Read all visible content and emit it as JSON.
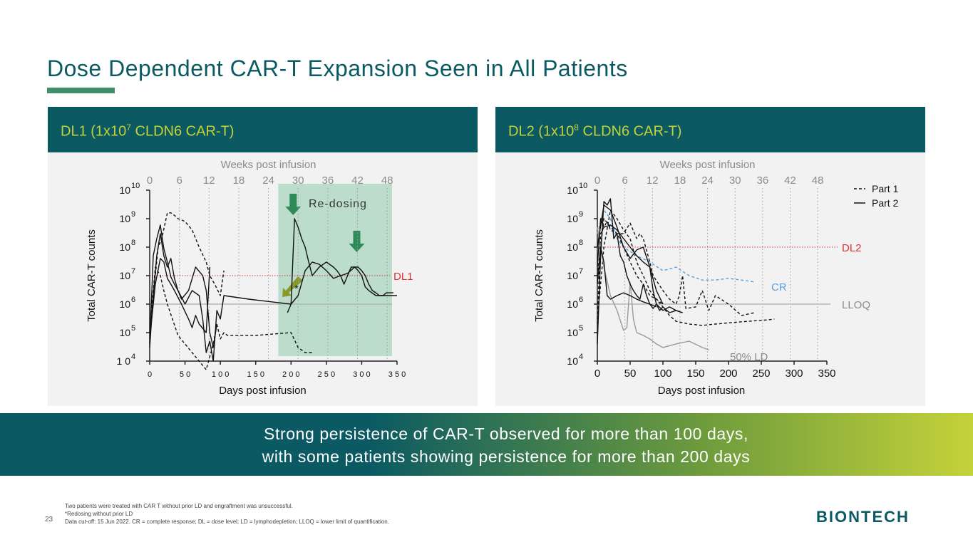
{
  "slide": {
    "title": "Dose Dependent CAR-T Expansion Seen in All Patients",
    "page_number": "23",
    "banner_line1": "Strong persistence of CAR-T observed for more than 100 days,",
    "banner_line2": "with  some patients showing persistence for more than 200 days",
    "footnotes": [
      "Two patients were treated with CAR T without prior LD and engraftment was unsuccessful.",
      "*Redosing without prior LD",
      "Data cut-off: 15 Jun 2022. CR = complete response; DL = dose level; LD = lymphodepletion; LLOQ = lower limit of quantification."
    ],
    "logo_text": "BIONTECH",
    "colors": {
      "teal": "#0b5a63",
      "accent": "#c4d23a",
      "green_bar": "#3f8f6b",
      "redosing_shade": "#bcdccc",
      "arrow_green": "#2e8b57",
      "dl_line": "#e03030",
      "cr_line": "#5aa0e6",
      "ld_line": "#9a9a9a"
    }
  },
  "chart_data": [
    {
      "type": "line",
      "panel_title_prefix": "DL1 (1x10",
      "panel_title_exp": "7",
      "panel_title_suffix": " CLDN6 CAR-T)",
      "xlabel": "Days post infusion",
      "ylabel": "Total CAR-T counts",
      "top_axis_label": "Weeks post infusion",
      "xlim": [
        0,
        350
      ],
      "ylim_log10": [
        4,
        10
      ],
      "x_ticks": [
        0,
        50,
        100,
        150,
        200,
        250,
        300,
        350
      ],
      "x_tick_labels": [
        "0",
        "5 0",
        "1 0 0",
        "1 5 0",
        "2 0 0",
        "2 5 0",
        "3 0 0",
        "3 5 0"
      ],
      "week_ticks": [
        0,
        6,
        12,
        18,
        24,
        30,
        36,
        42,
        48
      ],
      "y_tick_exponents": [
        4,
        5,
        6,
        7,
        8,
        9,
        10
      ],
      "y_tick_base_first": "1 0",
      "y_tick_base": "10",
      "reference_line": {
        "label": "DL1",
        "value": 10000000
      },
      "lloq_value": 1000000,
      "redosing": {
        "label": "Re-dosing",
        "x_range": [
          190,
          350
        ],
        "arrow_days": [
          203,
          293
        ],
        "star_label": "*"
      },
      "series": [
        {
          "style": "dashed",
          "x": [
            0,
            5,
            12,
            17,
            25,
            30,
            35,
            40,
            45,
            50,
            60,
            70,
            80,
            85,
            92,
            100,
            105
          ],
          "y": [
            60000,
            2000000,
            100000000,
            200000000,
            1600000000,
            1600000000,
            1300000000,
            1000000000,
            900000000,
            800000000,
            400000000,
            100000000,
            30000000,
            10000000,
            5000000,
            2000000,
            15000000
          ]
        },
        {
          "style": "dashed",
          "x": [
            0,
            8,
            15,
            20,
            25,
            40,
            60,
            80,
            90,
            95,
            100,
            105,
            110,
            150,
            200,
            210,
            220,
            230
          ],
          "y": [
            100000,
            20000000,
            10000000,
            3000000,
            1000000,
            80000,
            20000,
            5000,
            40000,
            200000,
            60000,
            100000,
            80000,
            80000,
            100000,
            30000,
            20000,
            20000
          ]
        },
        {
          "style": "solid",
          "x": [
            0,
            5,
            10,
            15,
            20,
            25,
            30,
            35,
            40,
            50,
            60,
            70,
            75,
            80,
            85,
            90,
            95,
            100,
            105,
            140,
            200,
            210,
            220,
            230,
            240,
            250,
            260,
            270,
            280,
            290,
            295,
            300,
            305,
            310,
            320,
            330,
            340,
            345,
            350
          ],
          "y": [
            40000,
            50000000,
            200000000,
            600000000,
            90000000,
            30000000,
            9000000,
            5000000,
            3000000,
            1000000,
            3000000,
            2000000,
            300000,
            20000,
            50000,
            10000,
            600000,
            300000,
            2000000,
            1500000,
            1000000,
            2000000,
            15000000,
            30000000,
            25000000,
            15000000,
            8000000,
            10000000,
            12000000,
            20000000,
            15000000,
            10000000,
            4000000,
            3000000,
            2000000,
            2000000,
            2000000,
            2000000,
            2000000
          ]
        },
        {
          "style": "solid",
          "x": [
            195,
            200,
            205,
            210,
            215,
            220,
            225,
            230,
            240,
            250,
            260,
            265,
            270,
            275,
            285,
            290,
            295,
            300,
            305,
            310,
            315,
            320,
            325,
            330,
            335,
            340,
            345
          ],
          "y": [
            500000,
            1000000,
            1000000000,
            500000000,
            200000000,
            100000000,
            30000000,
            10000000,
            20000000,
            30000000,
            20000000,
            15000000,
            10000000,
            5000000,
            20000000,
            20000000,
            20000000,
            15000000,
            10000000,
            5000000,
            3000000,
            2500000,
            2000000,
            2000000,
            2500000,
            2500000,
            2500000
          ]
        },
        {
          "style": "solid",
          "x": [
            0,
            5,
            10,
            15,
            20,
            25,
            30,
            35,
            40,
            45,
            55,
            65,
            75,
            80,
            85,
            90,
            95
          ],
          "y": [
            30000,
            2000000,
            50000000,
            300000000,
            50000000,
            20000000,
            40000000,
            8000000,
            3000000,
            1500000,
            3000000,
            20000000,
            10000000,
            3000000,
            100000,
            30000,
            200000
          ]
        },
        {
          "style": "solid",
          "x": [
            0,
            8,
            15,
            20,
            25,
            30,
            35,
            45,
            55,
            60,
            65,
            70,
            80,
            85
          ],
          "y": [
            60000,
            5000000,
            40000000,
            30000000,
            8000000,
            5000000,
            3000000,
            1000000,
            300000,
            150000,
            400000,
            200000,
            100000,
            20000000
          ]
        }
      ]
    },
    {
      "type": "line",
      "panel_title_prefix": "DL2 (1x10",
      "panel_title_exp": "8",
      "panel_title_suffix": " CLDN6 CAR-T)",
      "xlabel": "Days post infusion",
      "ylabel": "Total CAR-T counts",
      "top_axis_label": "Weeks post infusion",
      "xlim": [
        0,
        350
      ],
      "ylim_log10": [
        4,
        10
      ],
      "x_ticks": [
        0,
        50,
        100,
        150,
        200,
        250,
        300,
        350
      ],
      "x_tick_labels": [
        "0",
        "50",
        "100",
        "150",
        "200",
        "250",
        "300",
        "350"
      ],
      "week_ticks": [
        0,
        6,
        12,
        18,
        24,
        30,
        36,
        42,
        48
      ],
      "y_tick_exponents": [
        4,
        5,
        6,
        7,
        8,
        9,
        10
      ],
      "y_tick_base_first": "10",
      "y_tick_base": "10",
      "reference_line": {
        "label": "DL2",
        "value": 100000000
      },
      "lloq_label": "LLOQ",
      "lloq_value": 1000000,
      "cr_label": "CR",
      "ld_label": "50% LD",
      "legend": [
        {
          "label": "Part 1",
          "style": "dashed"
        },
        {
          "label": "Part 2",
          "style": "solid"
        }
      ],
      "legend_position": "top-right",
      "series": [
        {
          "style": "dashed",
          "x": [
            0,
            5,
            10,
            15,
            20,
            30,
            40,
            50,
            60,
            65,
            70,
            80,
            85,
            100,
            110,
            120,
            125,
            130,
            135,
            150,
            160,
            170,
            180,
            200,
            220,
            240
          ],
          "y": [
            200000,
            300000000,
            500000000,
            800000000,
            400000000,
            300000000,
            300000000,
            700000000,
            200000000,
            300000000,
            200000000,
            30000000,
            10000000,
            3000000,
            1500000,
            1000000,
            2000000,
            10000000,
            700000,
            800000,
            3000000,
            600000,
            2000000,
            1000000,
            400000,
            500000
          ]
        },
        {
          "style": "dashed",
          "x": [
            0,
            5,
            10,
            20,
            30,
            40,
            50,
            60,
            70,
            80,
            90,
            100,
            110,
            120,
            140,
            160,
            180,
            200,
            220,
            240,
            260,
            270
          ],
          "y": [
            300000,
            5000000,
            100000000,
            2000000000,
            1000000000,
            400000000,
            200000000,
            30000000,
            10000000,
            3000000,
            1500000,
            800000,
            400000,
            250000,
            200000,
            180000,
            200000,
            220000,
            240000,
            260000,
            280000,
            300000
          ]
        },
        {
          "style": "dashed",
          "x": [
            0,
            10,
            20,
            30,
            40,
            50,
            60,
            70,
            80,
            90,
            100
          ],
          "y": [
            10000000,
            1000000000,
            500000000,
            300000000,
            100000000,
            30000000,
            10000000,
            5000000,
            2000000,
            1500000,
            1000000
          ]
        },
        {
          "style": "cr",
          "x": [
            0,
            10,
            20,
            30,
            40,
            60,
            80,
            100,
            120,
            140,
            160,
            180,
            200,
            220,
            240
          ],
          "y": [
            300000000,
            2000000000,
            1000000000,
            200000000,
            100000000,
            50000000,
            30000000,
            15000000,
            20000000,
            10000000,
            7000000,
            7000000,
            8000000,
            7000000,
            6000000
          ]
        },
        {
          "style": "ld",
          "x": [
            0,
            5,
            10,
            20,
            30,
            40,
            45,
            50,
            55,
            60,
            70,
            80,
            90,
            100,
            120,
            140,
            160,
            170
          ],
          "y": [
            500000000,
            100000000,
            20000000,
            2000000,
            600000,
            120000,
            150000,
            6000000,
            300000,
            100000,
            80000,
            60000,
            40000,
            30000,
            40000,
            50000,
            30000,
            25000
          ]
        },
        {
          "style": "solid",
          "x": [
            0,
            5,
            10,
            15,
            20,
            25,
            30,
            35,
            40,
            45,
            50,
            55,
            60,
            65,
            70,
            75,
            80,
            85,
            90,
            95,
            100,
            110,
            120,
            130
          ],
          "y": [
            40000,
            50000000,
            4000000000,
            3000000000,
            5000000000,
            200000000,
            300000000,
            50000000,
            30000000,
            10000000,
            5000000,
            3000000,
            2000000,
            1500000,
            5000000,
            2000000,
            1000000,
            700000,
            1000000,
            600000,
            800000,
            500000,
            600000,
            500000
          ]
        },
        {
          "style": "solid",
          "x": [
            0,
            5,
            10,
            20,
            30,
            40,
            50,
            60,
            70,
            80,
            85,
            90,
            100,
            110,
            120,
            130
          ],
          "y": [
            20000000,
            1000000000,
            500000000,
            600000000,
            400000000,
            200000000,
            100000000,
            50000000,
            30000000,
            20000000,
            3000000,
            1000000,
            600000,
            800000,
            600000,
            500000
          ]
        },
        {
          "style": "solid",
          "x": [
            0,
            5,
            10,
            15,
            20,
            30,
            40,
            50,
            60,
            70,
            80,
            90
          ],
          "y": [
            5000000,
            100000000,
            30000000,
            2000000,
            1500000,
            2000000,
            2500000,
            2000000,
            1500000,
            1200000,
            1000000,
            800000
          ]
        },
        {
          "style": "solid",
          "x": [
            0,
            10,
            20,
            30,
            40,
            50,
            60,
            70,
            80,
            90,
            100
          ],
          "y": [
            100000000,
            3000000000,
            2000000000,
            500000000,
            100000000,
            40000000,
            80000000,
            100000000,
            20000000,
            3000000,
            1000000
          ]
        }
      ]
    }
  ]
}
